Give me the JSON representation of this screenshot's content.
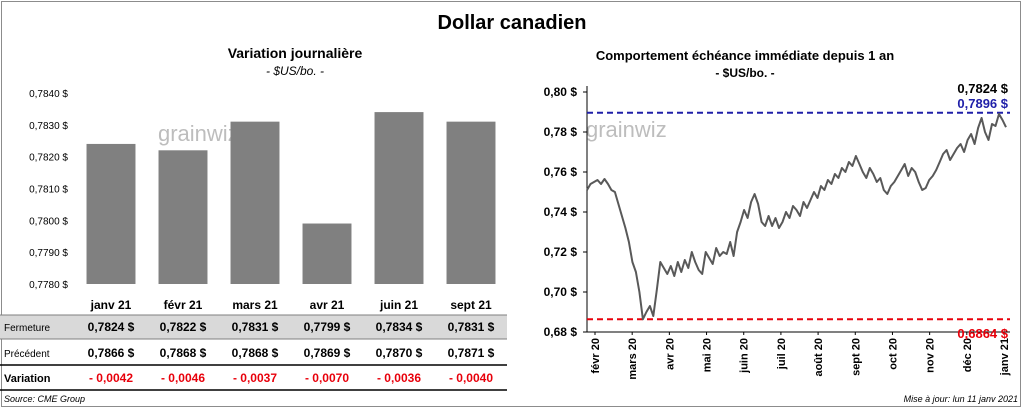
{
  "title": "Dollar canadien",
  "footer": {
    "source": "Source: CME Group",
    "updated": "Mise à jour: lun 11 janv 2021"
  },
  "watermark": "grainwiz",
  "colors": {
    "bar": "#808080",
    "line": "#595959",
    "max_line": "#1f1fa8",
    "min_line": "#e8000b",
    "negative": "#e8000b",
    "row_shade": "#d9d9d9"
  },
  "chart_data": [
    {
      "type": "bar",
      "title": "Variation  journalière",
      "subtitle": "- $US/bo. -",
      "categories": [
        "janv 21",
        "févr 21",
        "mars 21",
        "avr 21",
        "juin 21",
        "sept 21"
      ],
      "values": [
        0.7824,
        0.7822,
        0.7831,
        0.7799,
        0.7834,
        0.7831
      ],
      "ylim": [
        0.778,
        0.784
      ],
      "yticks": [
        "0,7780 $",
        "0,7790 $",
        "0,7800 $",
        "0,7810 $",
        "0,7820 $",
        "0,7830 $",
        "0,7840 $"
      ],
      "table": {
        "rows": [
          {
            "label": "Fermeture",
            "cells": [
              "0,7824  $",
              "0,7822  $",
              "0,7831  $",
              "0,7799  $",
              "0,7834  $",
              "0,7831  $"
            ]
          },
          {
            "label": "Précédent",
            "cells": [
              "0,7866  $",
              "0,7868  $",
              "0,7868  $",
              "0,7869  $",
              "0,7870  $",
              "0,7871  $"
            ]
          },
          {
            "label": "Variation",
            "cells": [
              "- 0,0042",
              "- 0,0046",
              "- 0,0037",
              "- 0,0070",
              "- 0,0036",
              "- 0,0040"
            ]
          }
        ]
      }
    },
    {
      "type": "line",
      "title": "Comportement échéance immédiate depuis 1 an",
      "subtitle": "- $US/bo. -",
      "ylim": [
        0.68,
        0.8
      ],
      "yticks": [
        "0,68 $",
        "0,70 $",
        "0,72 $",
        "0,74 $",
        "0,76 $",
        "0,78 $",
        "0,80 $"
      ],
      "xticks": [
        "févr 20",
        "mars 20",
        "avr 20",
        "mai 20",
        "juin 20",
        "juil 20",
        "août 20",
        "sept 20",
        "oct 20",
        "nov 20",
        "déc 20",
        "janv 21"
      ],
      "last_label": "0,7824 $",
      "max_label": "0,7896  $",
      "min_label": "0,6864  $",
      "max_value": 0.7896,
      "min_value": 0.6864,
      "values": [
        0.751,
        0.754,
        0.755,
        0.756,
        0.754,
        0.7565,
        0.754,
        0.751,
        0.75,
        0.744,
        0.738,
        0.732,
        0.725,
        0.715,
        0.71,
        0.7,
        0.6864,
        0.69,
        0.693,
        0.688,
        0.701,
        0.715,
        0.712,
        0.709,
        0.713,
        0.708,
        0.715,
        0.71,
        0.716,
        0.712,
        0.72,
        0.715,
        0.711,
        0.709,
        0.72,
        0.717,
        0.714,
        0.722,
        0.718,
        0.72,
        0.719,
        0.725,
        0.718,
        0.73,
        0.735,
        0.741,
        0.737,
        0.745,
        0.749,
        0.744,
        0.735,
        0.733,
        0.738,
        0.733,
        0.737,
        0.732,
        0.735,
        0.74,
        0.737,
        0.743,
        0.741,
        0.738,
        0.745,
        0.742,
        0.746,
        0.75,
        0.747,
        0.753,
        0.751,
        0.756,
        0.754,
        0.759,
        0.757,
        0.762,
        0.76,
        0.765,
        0.763,
        0.768,
        0.764,
        0.76,
        0.757,
        0.762,
        0.759,
        0.755,
        0.757,
        0.751,
        0.749,
        0.753,
        0.755,
        0.758,
        0.761,
        0.764,
        0.758,
        0.762,
        0.76,
        0.755,
        0.751,
        0.752,
        0.756,
        0.758,
        0.761,
        0.765,
        0.769,
        0.771,
        0.766,
        0.769,
        0.772,
        0.774,
        0.77,
        0.776,
        0.779,
        0.774,
        0.782,
        0.787,
        0.78,
        0.776,
        0.784,
        0.783,
        0.789,
        0.786,
        0.7824
      ]
    }
  ]
}
